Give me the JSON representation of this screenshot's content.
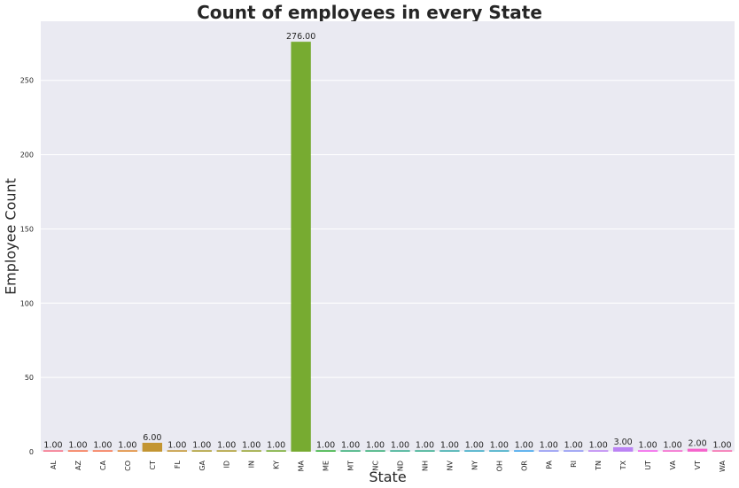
{
  "chart_data": {
    "type": "bar",
    "title": "Count of employees in every State",
    "xlabel": "State",
    "ylabel": "Employee Count",
    "categories": [
      "AL",
      "AZ",
      "CA",
      "CO",
      "CT",
      "FL",
      "GA",
      "ID",
      "IN",
      "KY",
      "MA",
      "ME",
      "MT",
      "NC",
      "ND",
      "NH",
      "NV",
      "NY",
      "OH",
      "OR",
      "PA",
      "RI",
      "TN",
      "TX",
      "UT",
      "VA",
      "VT",
      "WA"
    ],
    "values": [
      1,
      1,
      1,
      1,
      6,
      1,
      1,
      1,
      1,
      1,
      276,
      1,
      1,
      1,
      1,
      1,
      1,
      1,
      1,
      1,
      1,
      1,
      1,
      3,
      1,
      1,
      2,
      1
    ],
    "data_labels": [
      "1.00",
      "1.00",
      "1.00",
      "1.00",
      "6.00",
      "1.00",
      "1.00",
      "1.00",
      "1.00",
      "1.00",
      "276.00",
      "1.00",
      "1.00",
      "1.00",
      "1.00",
      "1.00",
      "1.00",
      "1.00",
      "1.00",
      "1.00",
      "1.00",
      "1.00",
      "1.00",
      "3.00",
      "1.00",
      "1.00",
      "2.00",
      "1.00"
    ],
    "yticks": [
      0,
      50,
      100,
      150,
      200,
      250
    ],
    "ylim": [
      0,
      289.8
    ],
    "grid": true,
    "colors": [
      "#f77189",
      "#f7754f",
      "#e08932",
      "#c39532",
      "#ae9d31",
      "#97a431",
      "#77ab31",
      "#33b039",
      "#35ae76",
      "#36ad8e",
      "#37abab",
      "#38a9c5",
      "#3ba3ec",
      "#8e96f4",
      "#bb83f4",
      "#f45deb",
      "#f565cc",
      "#f66bad"
    ],
    "background": "#eaeaf2"
  }
}
